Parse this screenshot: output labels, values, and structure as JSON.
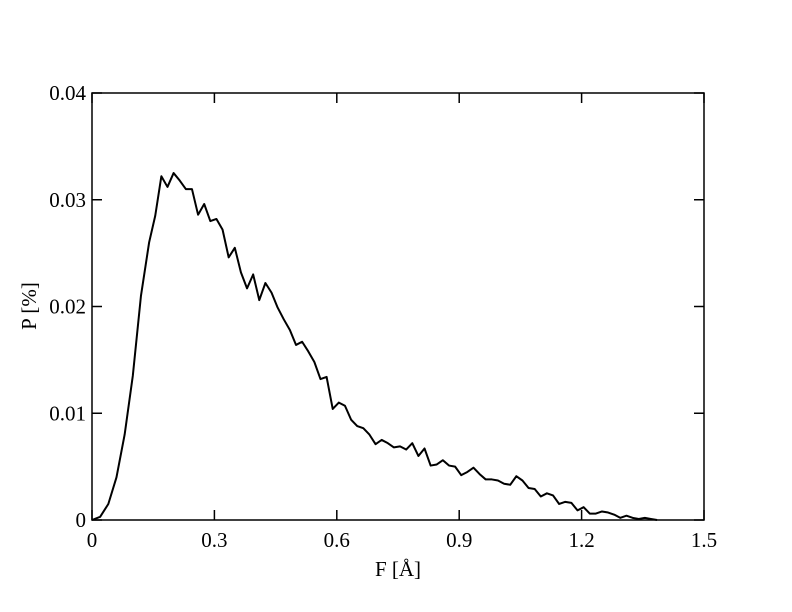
{
  "chart_data": {
    "type": "line",
    "xlabel": "F [Å]",
    "ylabel": "P [%]",
    "xlim": [
      0,
      1.5
    ],
    "xticks": [
      0,
      0.3,
      0.6,
      0.9,
      1.2,
      1.5
    ],
    "ylim": [
      0,
      0.04
    ],
    "yticks": [
      0,
      0.01,
      0.02,
      0.03,
      0.04
    ],
    "series": [
      {
        "color": "#000000",
        "x": [
          0,
          0.02,
          0.04,
          0.06,
          0.08,
          0.1,
          0.12,
          0.14,
          0.155,
          0.17,
          0.185,
          0.2,
          0.215,
          0.23,
          0.245,
          0.26,
          0.275,
          0.29,
          0.305,
          0.32,
          0.335,
          0.35,
          0.365,
          0.38,
          0.395,
          0.41,
          0.425,
          0.44,
          0.455,
          0.47,
          0.485,
          0.5,
          0.515,
          0.53,
          0.545,
          0.56,
          0.575,
          0.59,
          0.605,
          0.62,
          0.635,
          0.65,
          0.665,
          0.68,
          0.695,
          0.71,
          0.725,
          0.74,
          0.755,
          0.77,
          0.785,
          0.8,
          0.815,
          0.83,
          0.845,
          0.86,
          0.875,
          0.89,
          0.905,
          0.92,
          0.935,
          0.95,
          0.965,
          0.98,
          0.995,
          1.01,
          1.025,
          1.04,
          1.055,
          1.07,
          1.085,
          1.1,
          1.115,
          1.13,
          1.145,
          1.16,
          1.175,
          1.19,
          1.205,
          1.22,
          1.235,
          1.25,
          1.265,
          1.28,
          1.295,
          1.31,
          1.325,
          1.34,
          1.355,
          1.37,
          1.385
        ],
        "values": [
          0,
          0.0003,
          0.0015,
          0.004,
          0.008,
          0.0135,
          0.021,
          0.026,
          0.0285,
          0.0322,
          0.0312,
          0.0325,
          0.0318,
          0.031,
          0.031,
          0.0286,
          0.0296,
          0.028,
          0.0282,
          0.0272,
          0.0246,
          0.0255,
          0.0232,
          0.0217,
          0.023,
          0.0206,
          0.0222,
          0.0213,
          0.0199,
          0.0188,
          0.0178,
          0.0164,
          0.0167,
          0.0158,
          0.0148,
          0.0132,
          0.0134,
          0.0104,
          0.011,
          0.0107,
          0.0094,
          0.0088,
          0.0086,
          0.008,
          0.0071,
          0.0075,
          0.0072,
          0.0068,
          0.0069,
          0.0066,
          0.0072,
          0.006,
          0.0067,
          0.0051,
          0.0052,
          0.0056,
          0.0051,
          0.005,
          0.0042,
          0.0045,
          0.0049,
          0.0043,
          0.0038,
          0.0038,
          0.0037,
          0.0034,
          0.0033,
          0.0041,
          0.0037,
          0.003,
          0.0029,
          0.0022,
          0.0025,
          0.0023,
          0.0015,
          0.0017,
          0.0016,
          0.0009,
          0.0012,
          0.0006,
          0.0006,
          0.0008,
          0.0007,
          0.0005,
          0.0002,
          0.0004,
          0.0002,
          0.0001,
          0.0002,
          0.0001,
          0
        ]
      }
    ]
  }
}
